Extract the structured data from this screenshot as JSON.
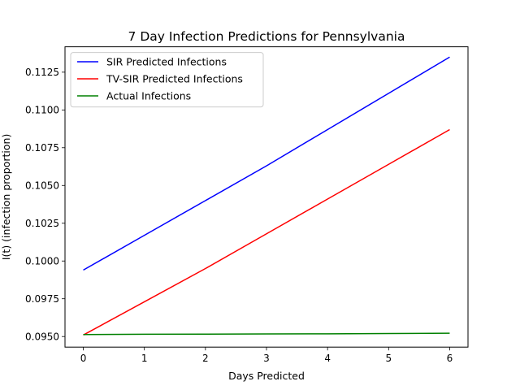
{
  "chart_data": {
    "type": "line",
    "title": "7 Day Infection Predictions for Pennsylvania",
    "xlabel": "Days Predicted",
    "ylabel": "I(t) (infection proportion)",
    "xlim": [
      -0.3,
      6.3
    ],
    "ylim": [
      0.0943,
      0.11418
    ],
    "xticks": [
      0,
      1,
      2,
      3,
      4,
      5,
      6
    ],
    "yticks": [
      0.095,
      0.0975,
      0.1,
      0.1025,
      0.105,
      0.1075,
      0.11,
      0.1125
    ],
    "ytick_labels": [
      "0.0950",
      "0.0975",
      "0.1000",
      "0.1025",
      "0.1050",
      "0.1075",
      "0.1100",
      "0.1125"
    ],
    "grid": false,
    "legend_position": "top-left",
    "x": [
      0,
      1,
      2,
      3,
      4,
      5,
      6
    ],
    "series": [
      {
        "name": "SIR Predicted Infections",
        "color": "#0000ff",
        "values": [
          0.0994,
          0.1017,
          0.104,
          0.1063,
          0.1087,
          0.1111,
          0.1135
        ]
      },
      {
        "name": "TV-SIR Predicted Infections",
        "color": "#ff0000",
        "values": [
          0.0951,
          0.0973,
          0.0995,
          0.1018,
          0.1041,
          0.1064,
          0.1087
        ]
      },
      {
        "name": "Actual Infections",
        "color": "#008000",
        "values": [
          0.09513,
          0.09515,
          0.09516,
          0.09517,
          0.09518,
          0.0952,
          0.09522
        ]
      }
    ]
  }
}
